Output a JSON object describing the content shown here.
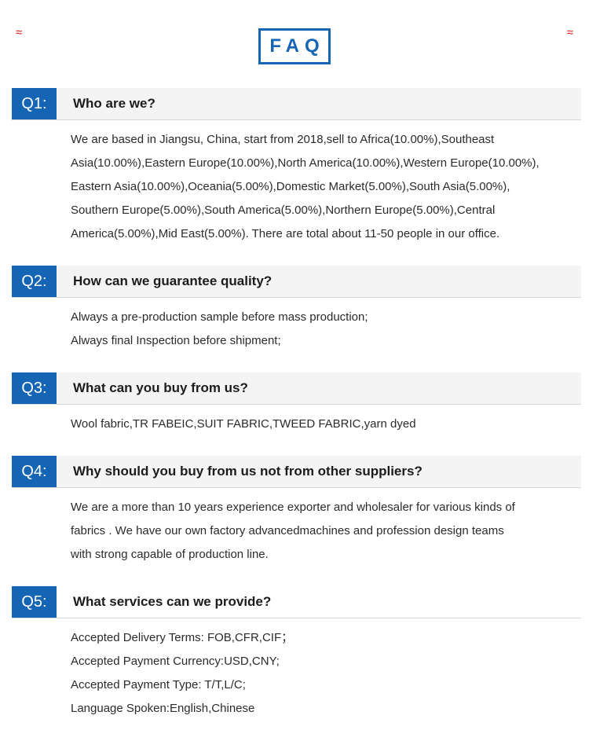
{
  "page": {
    "title": "FAQ"
  },
  "colors": {
    "accent_blue": "#1565b4",
    "question_bar_gray": "#f4f4f4",
    "divider_gray": "#d6d6d6",
    "corner_mark_red": "#dd1111"
  },
  "corner_marks": {
    "left": "≈",
    "right": "≈"
  },
  "faq": {
    "items": [
      {
        "label": "Q1:",
        "question": "Who are we?",
        "bar": "gray",
        "answer_lines": [
          "We are based in Jiangsu, China, start from 2018,sell to Africa(10.00%),Southeast",
          "Asia(10.00%),Eastern Europe(10.00%),North America(10.00%),Western Europe(10.00%),",
          "Eastern Asia(10.00%),Oceania(5.00%),Domestic Market(5.00%),South Asia(5.00%),",
          "Southern Europe(5.00%),South America(5.00%),Northern Europe(5.00%),Central",
          "America(5.00%),Mid East(5.00%). There are total about 11-50 people in our office."
        ]
      },
      {
        "label": "Q2:",
        "question": "How can we guarantee quality?",
        "bar": "gray",
        "answer_lines": [
          "Always a pre-production sample before mass production;",
          "Always final Inspection before shipment;"
        ]
      },
      {
        "label": "Q3:",
        "question": "What can you buy from us?",
        "bar": "gray",
        "answer_lines": [
          "Wool fabric,TR FABEIC,SUIT FABRIC,TWEED FABRIC,yarn dyed"
        ]
      },
      {
        "label": "Q4:",
        "question": "Why should you buy from us not from other suppliers?",
        "bar": "gray",
        "answer_lines": [
          "We are a more than 10 years experience exporter and wholesaler for various kinds of",
          "fabrics . We have our own factory advancedmachines and profession design teams",
          "with strong capable of production line."
        ]
      },
      {
        "label": "Q5:",
        "question": "What services can we provide?",
        "bar": "white",
        "answer_lines": [
          "Accepted Delivery Terms: FOB,CFR,CIF；",
          "Accepted Payment Currency:USD,CNY;",
          "Accepted Payment Type: T/T,L/C;",
          "Language Spoken:English,Chinese"
        ]
      }
    ]
  }
}
